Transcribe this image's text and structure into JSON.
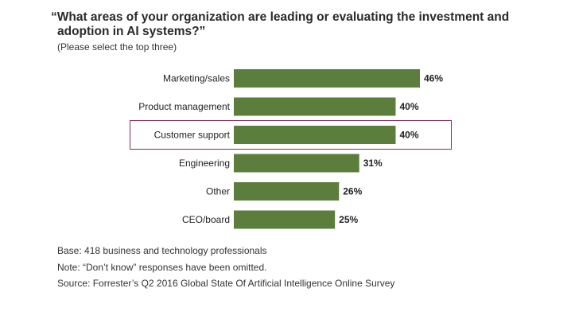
{
  "header": {
    "title_line1": "“What areas of your organization are leading or evaluating the investment and",
    "title_line2": "adoption in AI systems?”",
    "subtitle": "(Please select the top three)"
  },
  "chart_data": {
    "type": "bar",
    "orientation": "horizontal",
    "categories": [
      "Marketing/sales",
      "Product management",
      "Customer support",
      "Engineering",
      "Other",
      "CEO/board"
    ],
    "values": [
      46,
      40,
      40,
      31,
      26,
      25
    ],
    "value_labels": [
      "46%",
      "40%",
      "40%",
      "31%",
      "26%",
      "25%"
    ],
    "unit": "%",
    "highlighted_category": "Customer support",
    "xlim": [
      0,
      46
    ],
    "grid": false,
    "legend": "none",
    "bar_color": "#5b7e3c",
    "highlight_border_color": "#8c2c5a"
  },
  "notes": {
    "base": "Base: 418 business and technology professionals",
    "note": "Note: “Don’t know” responses have been omitted.",
    "source": "Source: Forrester’s Q2 2016 Global State Of Artificial Intelligence Online Survey"
  }
}
